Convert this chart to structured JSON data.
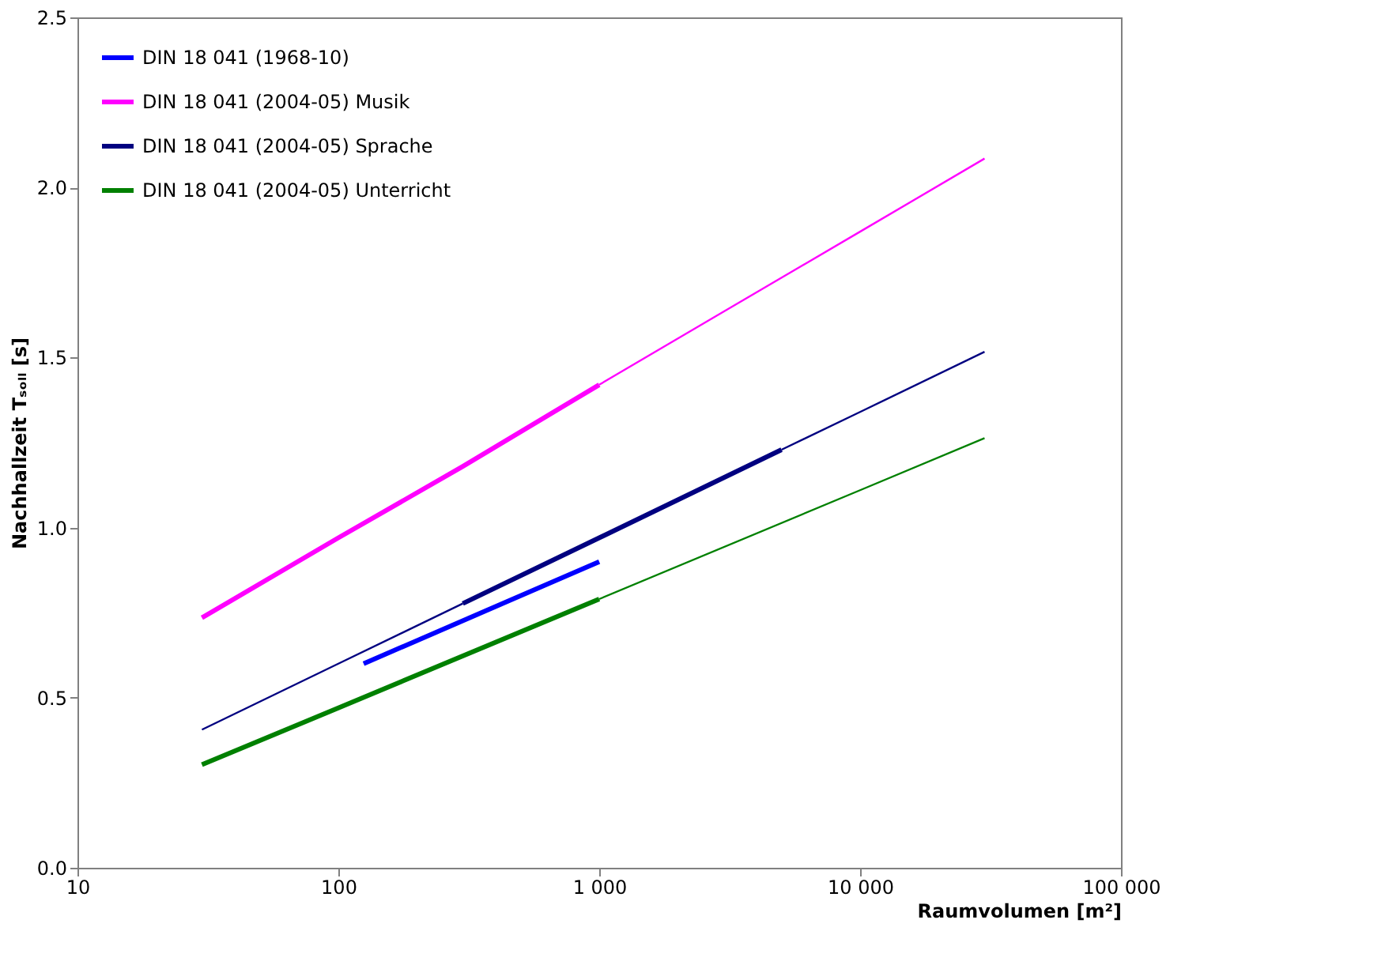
{
  "chart_data": {
    "type": "line",
    "xlabel": "Raumvolumen [m²]",
    "ylabel": "Nachhallzeit Tₛₒₗₗ [s]",
    "log": "x",
    "grid": false,
    "legend": "top left",
    "marker": "none",
    "line_style": "solid",
    "xlim": [
      10,
      100000
    ],
    "xticks": [
      10,
      100,
      {
        "value": 1000,
        "label": "1 000"
      },
      {
        "value": 10000,
        "label": "10 000"
      },
      {
        "value": 100000,
        "label": "100 000"
      }
    ],
    "ylim": [
      0,
      2.5
    ],
    "yticks": [
      {
        "value": 0,
        "label": "0.0"
      },
      {
        "value": 0.5,
        "label": "0.5"
      },
      {
        "value": 1,
        "label": "1.0"
      },
      {
        "value": 1.5,
        "label": "1.5"
      },
      {
        "value": 2,
        "label": "2.0"
      },
      2.5
    ],
    "series": [
      {
        "name": "DIN 18 041 (1968-10)",
        "color": "#0000ff",
        "x": [
          125,
          1000
        ],
        "values": [
          0.6,
          0.9
        ]
      },
      {
        "name": "DIN 18 041 (2004-05) Musik",
        "color": "#ff00ff",
        "x": [
          30,
          100,
          300,
          1000
        ],
        "values": [
          0.735,
          0.97,
          1.18,
          1.42
        ]
      },
      {
        "name": "DIN 18 041 (2004-05) Sprache",
        "color": "#000080",
        "x": [
          300,
          1000,
          5000
        ],
        "values": [
          0.777,
          0.97,
          1.229
        ]
      },
      {
        "name": "DIN 18 041 (2004-05) Unterricht",
        "color": "#008000",
        "x": [
          30,
          100,
          1000
        ],
        "values": [
          0.303,
          0.47,
          0.79
        ]
      },
      {
        "color": "#ff00ff",
        "x": [
          1000,
          3000,
          10000,
          30000
        ],
        "values": [
          1.42,
          1.635,
          1.87,
          2.085
        ]
      },
      {
        "color": "#000080",
        "x": [
          30,
          100,
          300
        ],
        "values": [
          0.406,
          0.6,
          0.777
        ]
      },
      {
        "color": "#000080",
        "x": [
          5000,
          10000,
          30000
        ],
        "values": [
          1.229,
          1.34,
          1.517
        ]
      },
      {
        "color": "#008000",
        "x": [
          1000,
          10000,
          30000
        ],
        "values": [
          0.79,
          1.11,
          1.263
        ]
      }
    ]
  }
}
